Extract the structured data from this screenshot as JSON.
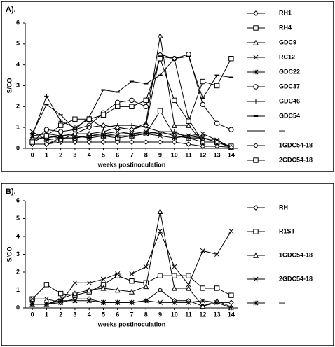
{
  "chart_data": [
    {
      "type": "line",
      "title": "A).",
      "ylabel": "S/CO",
      "xlabel": "weeks postinoculation",
      "x": [
        0,
        1,
        2,
        3,
        4,
        5,
        6,
        7,
        8,
        9,
        10,
        11,
        12,
        13,
        14
      ],
      "xlim": [
        -0.5,
        14.5
      ],
      "xticks": [
        0,
        1,
        2,
        3,
        4,
        5,
        6,
        7,
        8,
        9,
        10,
        11,
        12,
        13,
        14
      ],
      "ylim": [
        0,
        6
      ],
      "yticks": [
        0,
        1,
        2,
        3,
        4,
        5,
        6
      ],
      "series": [
        {
          "name": "RH1",
          "color": "#000000",
          "marker": "diamond",
          "values": [
            0.2,
            0.2,
            0.3,
            0.3,
            0.3,
            0.3,
            0.3,
            0.3,
            0.3,
            0.3,
            0.3,
            0.2,
            0.1,
            0.1,
            0.05
          ]
        },
        {
          "name": "RH4",
          "color": "#000000",
          "marker": "square",
          "values": [
            0.3,
            0.6,
            0.5,
            0.5,
            0.6,
            0.6,
            0.5,
            0.6,
            0.7,
            1.8,
            0.6,
            0.5,
            0.5,
            0.3,
            0.1
          ]
        },
        {
          "name": "GDC9",
          "color": "#000000",
          "marker": "triangle",
          "values": [
            0.5,
            0.5,
            0.6,
            0.7,
            0.7,
            0.8,
            1.0,
            0.9,
            1.2,
            5.4,
            1.1,
            1.1,
            0.3,
            0.3,
            0.05
          ]
        },
        {
          "name": "RC12",
          "color": "#000000",
          "marker": "x",
          "values": [
            0.8,
            0.4,
            0.5,
            0.5,
            0.6,
            0.7,
            0.8,
            0.7,
            0.8,
            0.7,
            0.7,
            0.6,
            0.7,
            0.4,
            0.05
          ]
        },
        {
          "name": "GDC22",
          "color": "#000000",
          "marker": "star",
          "values": [
            0.6,
            0.7,
            0.6,
            0.6,
            0.5,
            0.6,
            0.6,
            0.6,
            0.7,
            0.6,
            0.5,
            0.6,
            0.5,
            0.4,
            0.05
          ]
        },
        {
          "name": "GDC37",
          "color": "#000000",
          "marker": "circle",
          "values": [
            0.3,
            0.9,
            0.8,
            0.9,
            1.1,
            1.7,
            2.2,
            2.3,
            2.0,
            4.4,
            4.3,
            4.5,
            2.1,
            1.2,
            0.9
          ]
        },
        {
          "name": "GDC46",
          "color": "#000000",
          "marker": "plus",
          "values": [
            0.6,
            2.5,
            1.3,
            1.0,
            1.4,
            1.0,
            1.1,
            1.1,
            1.0,
            0.8,
            0.8,
            0.5,
            0.5,
            0.3,
            0.05
          ]
        },
        {
          "name": "GDC54",
          "color": "#000000",
          "marker": "dash",
          "values": [
            0.7,
            2.1,
            1.6,
            0.9,
            1.5,
            2.8,
            2.7,
            3.2,
            3.1,
            3.5,
            4.3,
            4.4,
            2.4,
            3.5,
            3.4
          ]
        },
        {
          "name": "—",
          "color": "#000000",
          "marker": "none",
          "values": [
            0.2,
            0.2,
            0.5,
            0.5,
            0.6,
            0.6,
            0.7,
            0.7,
            0.7,
            0.8,
            0.6,
            0.5,
            0.3,
            0.3,
            0.05
          ]
        },
        {
          "name": "1GDC54-18",
          "color": "#000000",
          "marker": "diamond",
          "values": [
            0.2,
            0.2,
            0.4,
            0.7,
            1.0,
            1.1,
            1.0,
            0.9,
            1.1,
            4.5,
            4.3,
            1.4,
            0.3,
            0.3,
            0.05
          ]
        },
        {
          "name": "2GDC54-18",
          "color": "#000000",
          "marker": "square",
          "values": [
            0.3,
            0.6,
            1.1,
            1.4,
            1.4,
            1.6,
            2.0,
            2.0,
            2.3,
            4.3,
            2.3,
            1.3,
            3.2,
            3.0,
            4.3
          ]
        }
      ]
    },
    {
      "type": "line",
      "title": "B).",
      "ylabel": "S/CO",
      "xlabel": "weeks postinoculation",
      "x": [
        0,
        1,
        2,
        3,
        4,
        5,
        6,
        7,
        8,
        9,
        10,
        11,
        12,
        13,
        14
      ],
      "xlim": [
        -0.5,
        14.5
      ],
      "xticks": [
        0,
        1,
        2,
        3,
        4,
        5,
        6,
        7,
        8,
        9,
        10,
        11,
        12,
        13,
        14
      ],
      "ylim": [
        0,
        6
      ],
      "yticks": [
        0,
        1,
        2,
        3,
        4,
        5,
        6
      ],
      "series": [
        {
          "name": "RH",
          "color": "#000000",
          "marker": "diamond",
          "values": [
            0.2,
            0.2,
            0.3,
            0.5,
            0.5,
            0.3,
            0.3,
            0.3,
            0.4,
            1.0,
            0.4,
            0.4,
            0.1,
            0.3,
            0.3
          ]
        },
        {
          "name": "R1ST",
          "color": "#000000",
          "marker": "square",
          "values": [
            0.5,
            1.3,
            0.8,
            0.7,
            0.9,
            1.3,
            1.8,
            1.5,
            1.4,
            1.8,
            1.8,
            1.8,
            1.1,
            1.1,
            0.7
          ]
        },
        {
          "name": "1GDC54-18",
          "color": "#000000",
          "marker": "triangle",
          "values": [
            0.2,
            0.2,
            0.5,
            0.8,
            1.0,
            1.1,
            1.0,
            0.9,
            1.2,
            5.4,
            1.1,
            1.1,
            0.1,
            0.4,
            0.05
          ]
        },
        {
          "name": "2GDC54-18",
          "color": "#000000",
          "marker": "x",
          "values": [
            0.5,
            0.5,
            0.3,
            1.4,
            1.4,
            1.6,
            1.9,
            1.9,
            2.3,
            4.3,
            2.3,
            1.3,
            3.2,
            3.0,
            4.3
          ]
        },
        {
          "name": "—",
          "color": "#000000",
          "marker": "star",
          "values": [
            0.2,
            0.2,
            0.4,
            0.4,
            0.4,
            0.3,
            0.3,
            0.3,
            0.4,
            0.3,
            0.3,
            0.3,
            0.4,
            0.3,
            0.0
          ]
        }
      ]
    }
  ]
}
